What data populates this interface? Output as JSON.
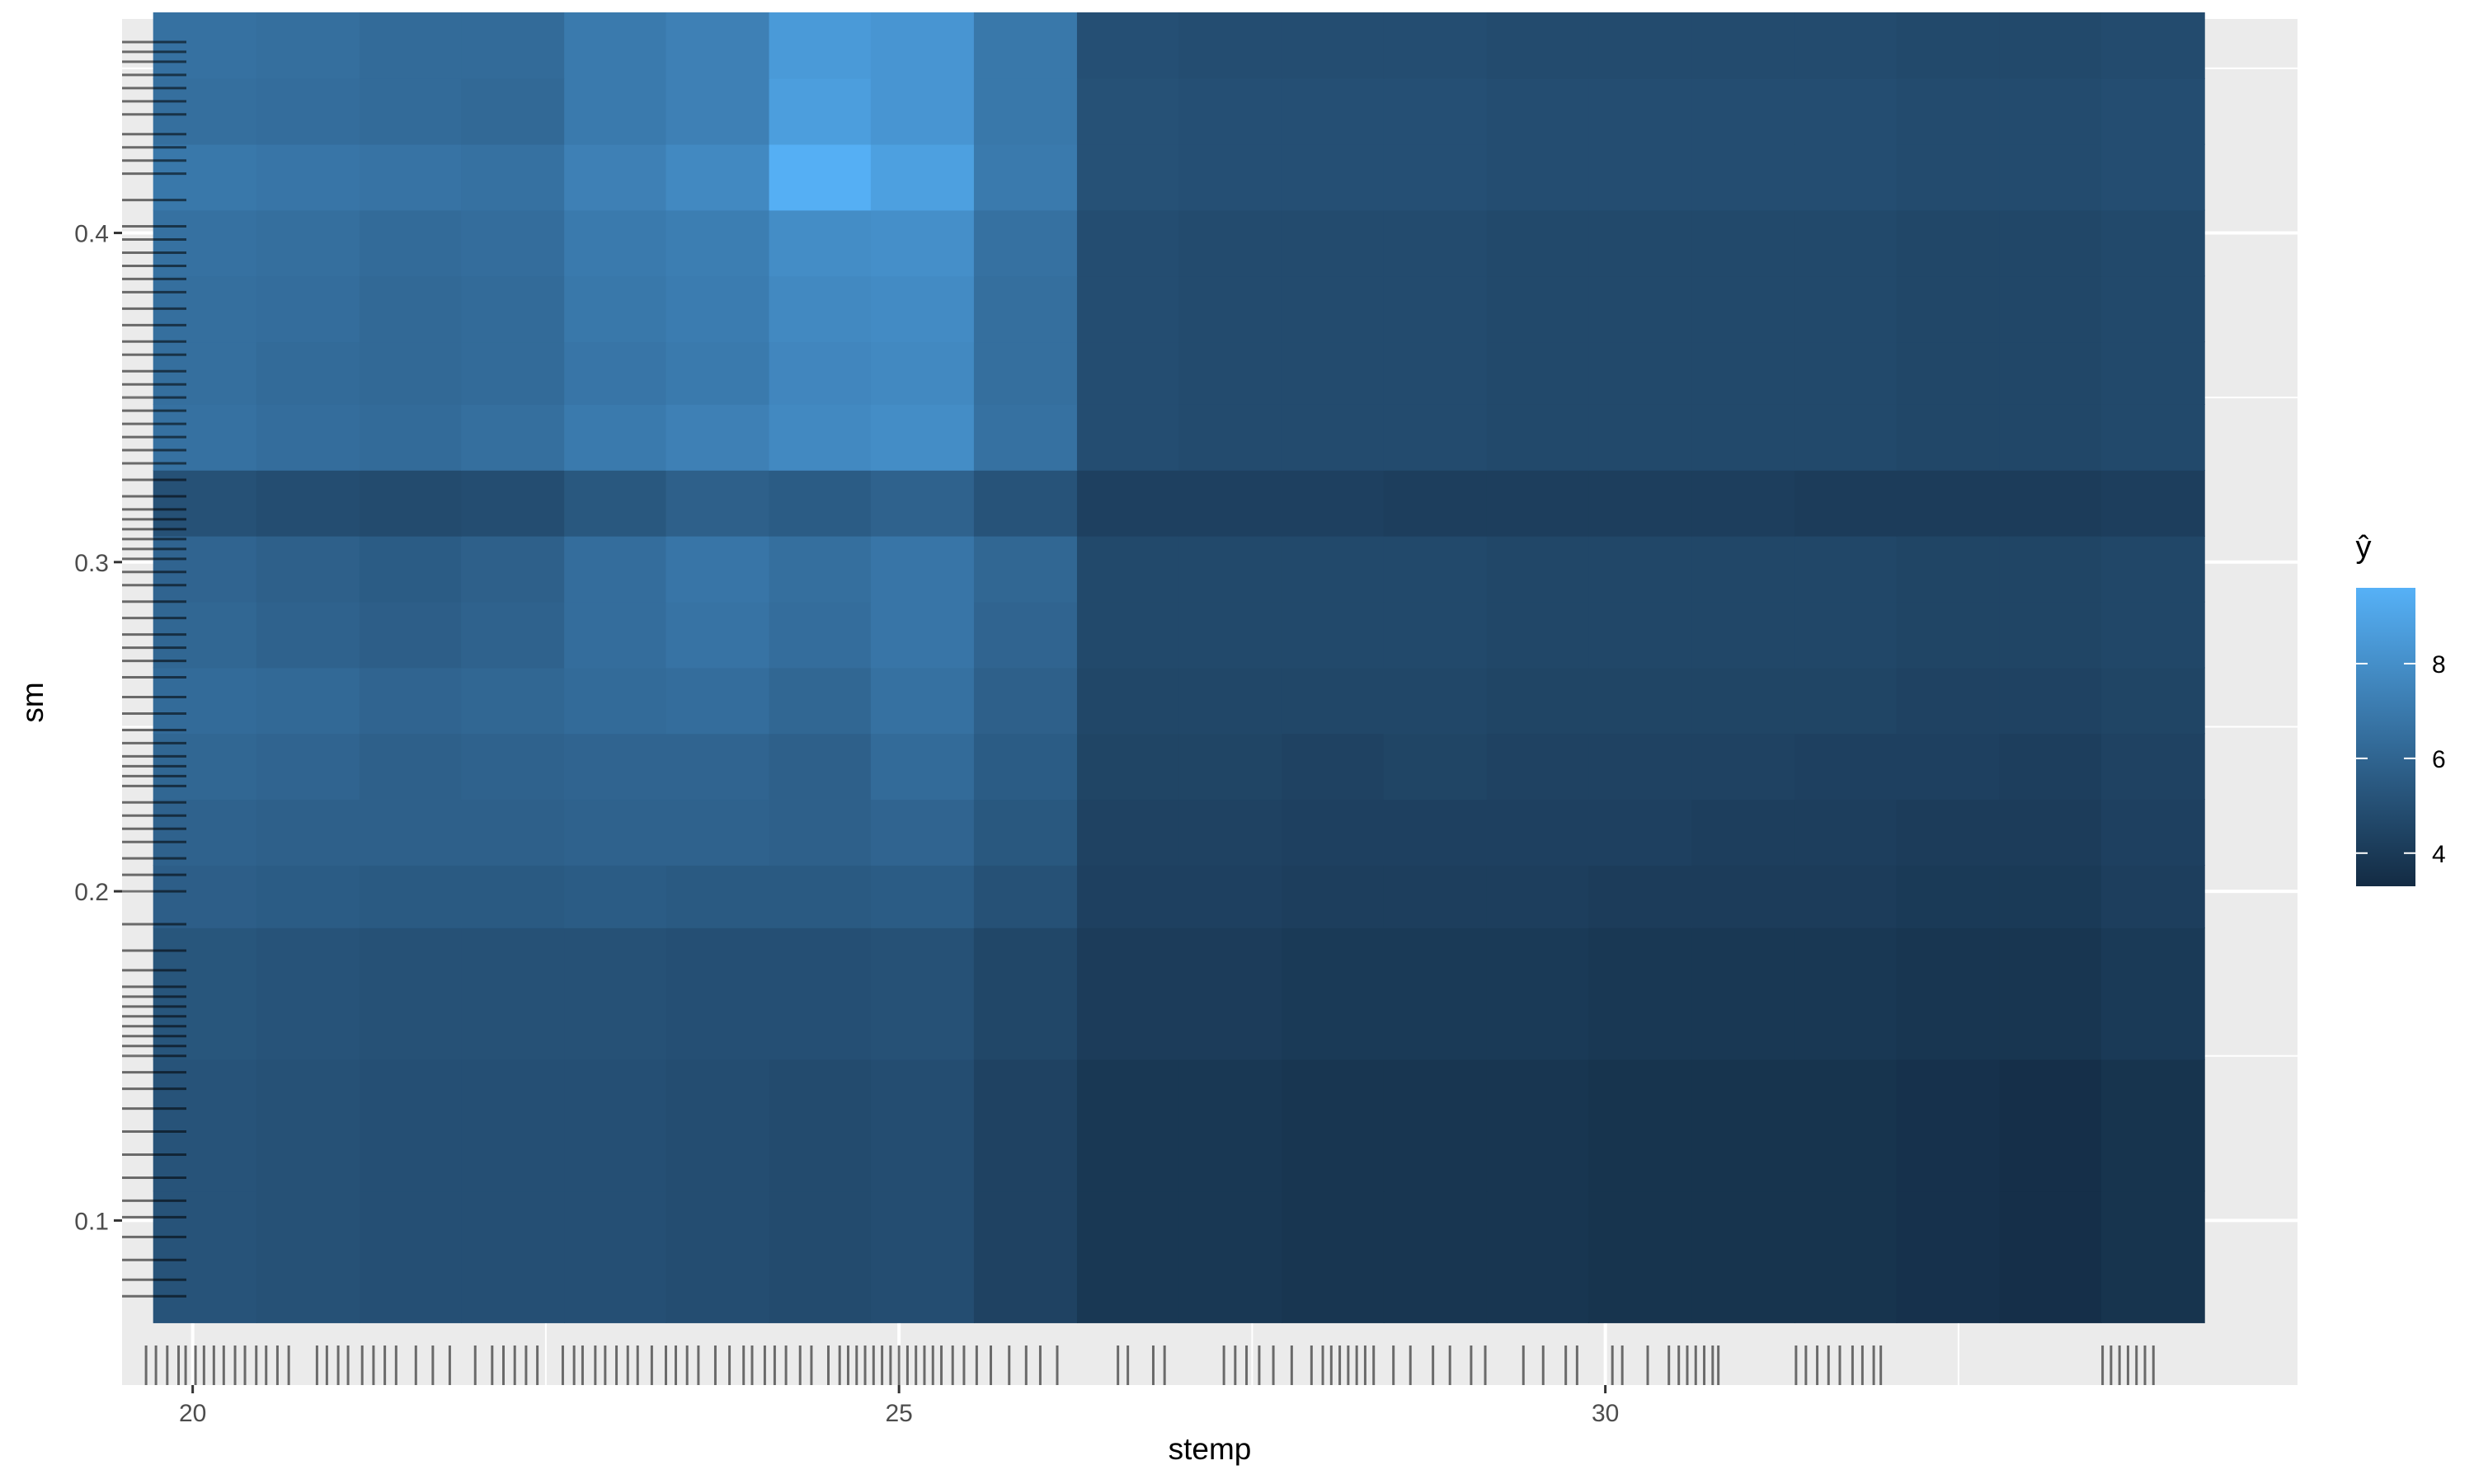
{
  "chart_data": {
    "type": "heatmap",
    "title": "",
    "xlabel": "stemp",
    "ylabel": "sm",
    "xlim": [
      19.5,
      34.9
    ],
    "ylim": [
      0.05,
      0.465
    ],
    "x_ticks": [
      20,
      25,
      30
    ],
    "x_tick_labels": [
      "20",
      "25",
      "30"
    ],
    "y_ticks": [
      0.1,
      0.2,
      0.3,
      0.4
    ],
    "y_tick_labels": [
      "0.1",
      "0.2",
      "0.3",
      "0.4"
    ],
    "x_edges": [
      19.72,
      20.45,
      21.18,
      21.9,
      22.63,
      23.35,
      24.08,
      24.8,
      25.53,
      26.26,
      26.98,
      27.71,
      28.43,
      29.16,
      29.88,
      30.61,
      31.34,
      32.06,
      32.79,
      33.51,
      34.24
    ],
    "y_edges": [
      0.069,
      0.109,
      0.149,
      0.189,
      0.208,
      0.228,
      0.248,
      0.268,
      0.288,
      0.308,
      0.328,
      0.348,
      0.367,
      0.387,
      0.407,
      0.427,
      0.447,
      0.467
    ],
    "values": [
      [
        5.2,
        5.1,
        5.0,
        5.0,
        5.0,
        4.9,
        4.8,
        4.9,
        4.4,
        3.9,
        3.9,
        3.8,
        3.8,
        3.8,
        3.7,
        3.7,
        3.7,
        3.6,
        3.5,
        3.7
      ],
      [
        5.2,
        5.1,
        5.0,
        5.0,
        5.0,
        4.9,
        4.8,
        4.9,
        4.4,
        3.9,
        3.9,
        3.8,
        3.8,
        3.8,
        3.7,
        3.7,
        3.7,
        3.6,
        3.5,
        3.7
      ],
      [
        5.3,
        5.2,
        5.1,
        5.1,
        5.1,
        5.0,
        5.0,
        5.1,
        4.6,
        4.1,
        4.1,
        4.0,
        4.0,
        4.0,
        3.9,
        3.9,
        3.9,
        3.8,
        3.8,
        4.0
      ],
      [
        5.7,
        5.6,
        5.5,
        5.5,
        5.6,
        5.5,
        5.5,
        5.6,
        5.1,
        4.3,
        4.3,
        4.2,
        4.2,
        4.2,
        4.1,
        4.1,
        4.1,
        4.0,
        4.0,
        4.2
      ],
      [
        5.9,
        5.8,
        5.8,
        5.8,
        5.9,
        5.9,
        5.8,
        6.0,
        5.4,
        4.4,
        4.4,
        4.3,
        4.3,
        4.3,
        4.3,
        4.2,
        4.2,
        4.1,
        4.1,
        4.3
      ],
      [
        6.1,
        6.0,
        5.8,
        5.9,
        6.0,
        6.0,
        5.8,
        6.3,
        5.6,
        4.5,
        4.5,
        4.4,
        4.5,
        4.4,
        4.4,
        4.4,
        4.3,
        4.3,
        4.2,
        4.4
      ],
      [
        6.3,
        6.2,
        6.0,
        6.1,
        6.3,
        6.4,
        6.1,
        6.6,
        5.8,
        4.6,
        4.6,
        4.6,
        4.6,
        4.5,
        4.5,
        4.5,
        4.5,
        4.4,
        4.4,
        4.5
      ],
      [
        6.1,
        5.9,
        5.7,
        5.9,
        6.4,
        6.7,
        6.4,
        6.8,
        6.0,
        4.7,
        4.7,
        4.7,
        4.7,
        4.6,
        4.6,
        4.6,
        4.6,
        4.5,
        4.5,
        4.6
      ],
      [
        6.0,
        5.8,
        5.6,
        5.8,
        6.4,
        6.8,
        6.5,
        6.8,
        6.1,
        4.7,
        4.7,
        4.7,
        4.7,
        4.6,
        4.6,
        4.6,
        4.6,
        4.5,
        4.5,
        4.6
      ],
      [
        5.1,
        4.9,
        4.8,
        4.9,
        5.4,
        5.8,
        5.6,
        5.9,
        5.2,
        4.3,
        4.3,
        4.3,
        4.2,
        4.2,
        4.2,
        4.2,
        4.1,
        4.1,
        4.1,
        4.2
      ],
      [
        6.6,
        6.4,
        6.3,
        6.5,
        7.0,
        7.3,
        7.7,
        7.9,
        6.6,
        4.9,
        4.8,
        4.8,
        4.8,
        4.7,
        4.7,
        4.7,
        4.7,
        4.6,
        4.6,
        4.7
      ],
      [
        6.5,
        6.3,
        6.2,
        6.3,
        6.8,
        7.0,
        7.6,
        7.7,
        6.5,
        4.9,
        4.8,
        4.8,
        4.8,
        4.7,
        4.7,
        4.7,
        4.7,
        4.6,
        4.6,
        4.7
      ],
      [
        6.5,
        6.4,
        6.2,
        6.3,
        6.9,
        7.1,
        7.7,
        7.8,
        6.5,
        4.9,
        4.8,
        4.8,
        4.8,
        4.7,
        4.7,
        4.7,
        4.7,
        4.6,
        4.6,
        4.7
      ],
      [
        6.6,
        6.5,
        6.3,
        6.4,
        7.0,
        7.2,
        7.9,
        8.0,
        6.6,
        4.9,
        4.8,
        4.8,
        4.8,
        4.7,
        4.7,
        4.7,
        4.7,
        4.6,
        4.6,
        4.7
      ],
      [
        6.9,
        6.8,
        6.7,
        6.6,
        7.3,
        7.7,
        9.5,
        8.8,
        7.0,
        5.1,
        5.0,
        5.0,
        5.0,
        4.9,
        4.9,
        4.9,
        4.9,
        4.8,
        4.8,
        4.9
      ],
      [
        6.5,
        6.4,
        6.3,
        6.2,
        7.0,
        7.3,
        8.7,
        8.3,
        6.9,
        5.1,
        5.0,
        5.0,
        5.0,
        4.9,
        4.9,
        4.9,
        4.9,
        4.8,
        4.8,
        4.9
      ],
      [
        6.6,
        6.5,
        6.3,
        6.3,
        7.0,
        7.3,
        8.5,
        8.3,
        6.9,
        5.0,
        4.9,
        4.9,
        4.9,
        4.8,
        4.8,
        4.8,
        4.8,
        4.7,
        4.7,
        4.8
      ]
    ],
    "legend": {
      "title": "ŷ",
      "placement": "right",
      "range": [
        3.3,
        9.6
      ],
      "ticks": [
        4,
        6,
        8
      ],
      "tick_labels": [
        "4",
        "6",
        "8"
      ],
      "low_color": "#132b43",
      "high_color": "#56b1f7"
    },
    "rug_x": [
      19.67,
      19.74,
      19.82,
      19.9,
      19.95,
      20.02,
      20.08,
      20.15,
      20.22,
      20.3,
      20.37,
      20.45,
      20.52,
      20.6,
      20.68,
      20.88,
      20.95,
      21.03,
      21.1,
      21.2,
      21.28,
      21.36,
      21.44,
      21.58,
      21.7,
      21.82,
      22.0,
      22.12,
      22.2,
      22.28,
      22.36,
      22.44,
      22.62,
      22.7,
      22.76,
      22.85,
      22.92,
      23.0,
      23.08,
      23.15,
      23.25,
      23.35,
      23.42,
      23.5,
      23.58,
      23.7,
      23.8,
      23.9,
      23.96,
      24.05,
      24.12,
      24.2,
      24.3,
      24.38,
      24.5,
      24.58,
      24.64,
      24.7,
      24.76,
      24.82,
      24.88,
      24.94,
      25.0,
      25.06,
      25.12,
      25.18,
      25.24,
      25.3,
      25.38,
      25.46,
      25.55,
      25.65,
      25.78,
      25.9,
      26.0,
      26.12,
      26.55,
      26.62,
      26.8,
      26.88,
      27.3,
      27.38,
      27.46,
      27.55,
      27.65,
      27.78,
      27.92,
      28.0,
      28.06,
      28.12,
      28.18,
      28.24,
      28.3,
      28.36,
      28.5,
      28.62,
      28.78,
      28.9,
      29.05,
      29.15,
      29.42,
      29.56,
      29.72,
      29.8,
      30.05,
      30.12,
      30.3,
      30.45,
      30.52,
      30.58,
      30.64,
      30.7,
      30.76,
      30.8,
      31.35,
      31.42,
      31.5,
      31.58,
      31.66,
      31.75,
      31.82,
      31.9,
      31.95,
      33.52,
      33.58,
      33.64,
      33.7,
      33.76,
      33.82,
      33.88
    ],
    "rug_y": [
      0.077,
      0.082,
      0.088,
      0.095,
      0.101,
      0.106,
      0.113,
      0.12,
      0.127,
      0.134,
      0.14,
      0.145,
      0.15,
      0.153,
      0.156,
      0.159,
      0.162,
      0.165,
      0.168,
      0.171,
      0.176,
      0.182,
      0.19,
      0.2,
      0.205,
      0.21,
      0.215,
      0.219,
      0.223,
      0.227,
      0.232,
      0.235,
      0.238,
      0.241,
      0.245,
      0.249,
      0.254,
      0.259,
      0.265,
      0.27,
      0.274,
      0.278,
      0.283,
      0.288,
      0.293,
      0.297,
      0.301,
      0.304,
      0.307,
      0.31,
      0.313,
      0.316,
      0.32,
      0.325,
      0.33,
      0.334,
      0.338,
      0.342,
      0.346,
      0.35,
      0.354,
      0.358,
      0.363,
      0.367,
      0.372,
      0.377,
      0.382,
      0.386,
      0.39,
      0.394,
      0.398,
      0.402,
      0.41,
      0.418,
      0.422,
      0.426,
      0.43,
      0.436,
      0.44,
      0.444,
      0.448,
      0.452,
      0.455,
      0.458
    ]
  }
}
